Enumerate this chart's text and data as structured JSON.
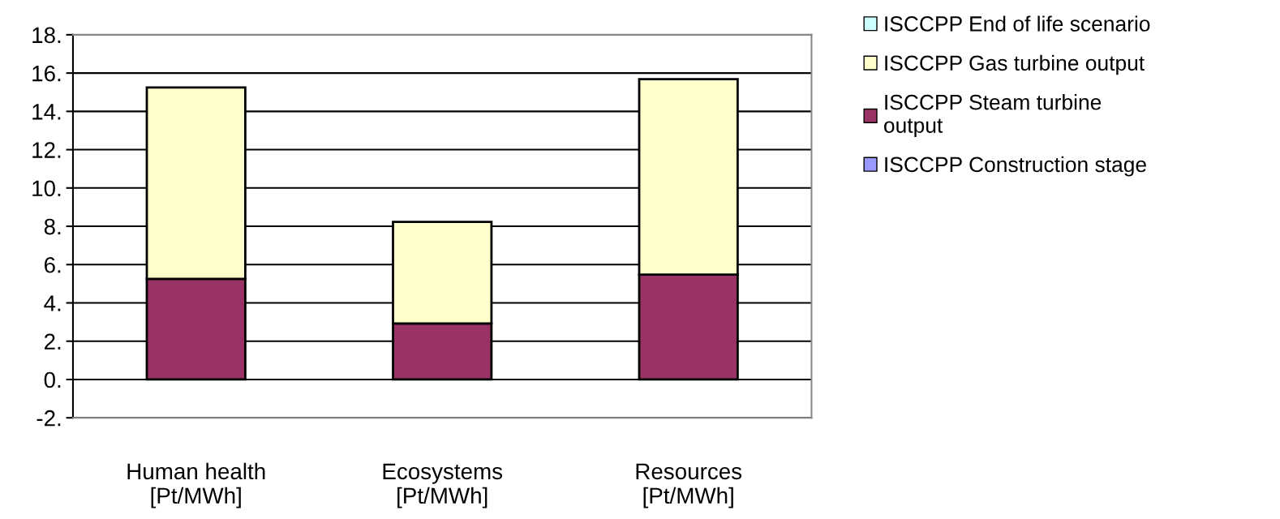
{
  "chart_data": {
    "type": "bar",
    "stacked": true,
    "categories": [
      "Human health\n[Pt/MWh]",
      "Ecosystems\n[Pt/MWh]",
      "Resources\n[Pt/MWh]"
    ],
    "series": [
      {
        "name": "ISCCPP Construction stage",
        "color": "#9999ff",
        "values": [
          null,
          null,
          null
        ]
      },
      {
        "name": "ISCCPP Steam turbine\noutput",
        "color": "#993366",
        "values": [
          5.25,
          2.93,
          5.48
        ]
      },
      {
        "name": "ISCCPP Gas turbine output",
        "color": "#ffffcc",
        "values": [
          10.0,
          5.3,
          10.2
        ]
      },
      {
        "name": "ISCCPP End of life scenario",
        "color": "#ccffff",
        "values": [
          null,
          null,
          null
        ]
      }
    ],
    "ylim": [
      -2,
      18
    ],
    "yticks": [
      {
        "value": -2,
        "label": "-2."
      },
      {
        "value": 0,
        "label": "0."
      },
      {
        "value": 2,
        "label": "2."
      },
      {
        "value": 4,
        "label": "4."
      },
      {
        "value": 6,
        "label": "6."
      },
      {
        "value": 8,
        "label": "8."
      },
      {
        "value": 10,
        "label": "10."
      },
      {
        "value": 12,
        "label": "12."
      },
      {
        "value": 14,
        "label": "14."
      },
      {
        "value": 16,
        "label": "16."
      },
      {
        "value": 18,
        "label": "18."
      }
    ],
    "grid": "y",
    "legend": "right"
  }
}
